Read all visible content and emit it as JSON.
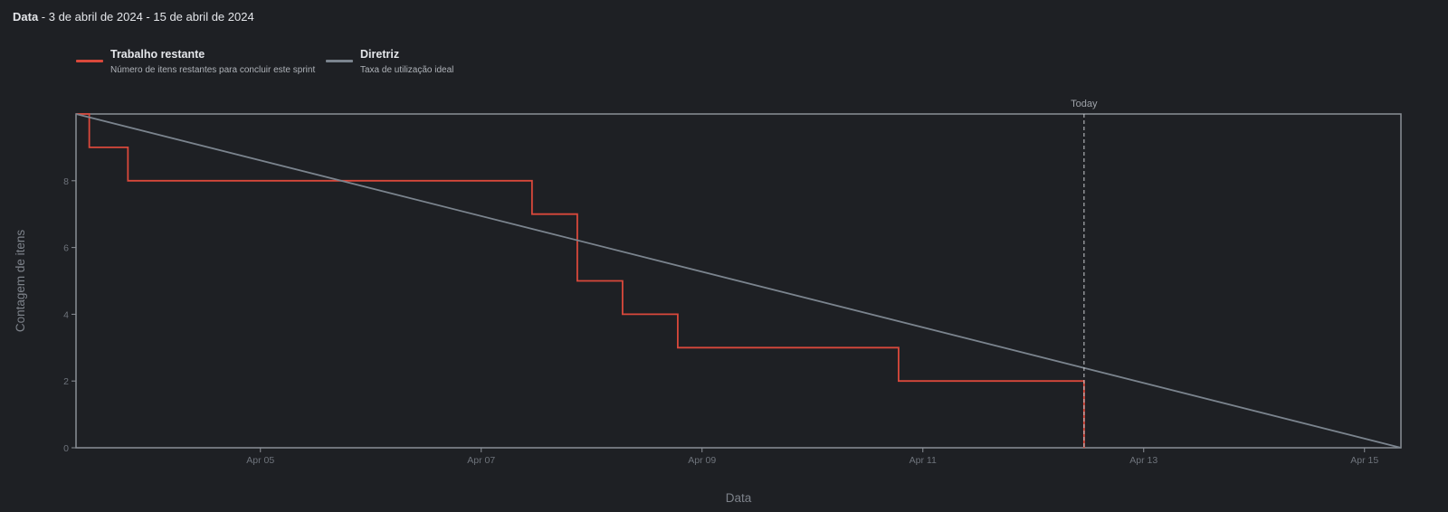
{
  "header": {
    "title": "Data",
    "range": " - 3 de abril de 2024 - 15 de abril de 2024"
  },
  "legend": [
    {
      "name": "Trabalho restante",
      "desc": "Número de itens restantes para concluir este sprint",
      "color": "#d9483b"
    },
    {
      "name": "Diretriz",
      "desc": "Taxa de utilização ideal",
      "color": "#7b848e"
    }
  ],
  "chart_data": {
    "type": "line",
    "xlabel": "Data",
    "ylabel": "Contagem de itens",
    "x_ticks": [
      "Apr 05",
      "Apr 07",
      "Apr 09",
      "Apr 11",
      "Apr 13",
      "Apr 15"
    ],
    "x_tick_values": [
      5,
      7,
      9,
      11,
      13,
      15
    ],
    "xlim": [
      3.33,
      15.33
    ],
    "y_ticks": [
      "0",
      "2",
      "4",
      "6",
      "8"
    ],
    "y_tick_values": [
      0,
      2,
      4,
      6,
      8
    ],
    "ylim": [
      0,
      10
    ],
    "today": {
      "label": "Today",
      "x": 12.46
    },
    "series": [
      {
        "name": "Trabalho restante",
        "color": "#d9483b",
        "step": true,
        "points": [
          [
            3.33,
            10
          ],
          [
            3.45,
            9
          ],
          [
            3.8,
            8
          ],
          [
            7.46,
            7
          ],
          [
            7.87,
            5
          ],
          [
            8.28,
            4
          ],
          [
            8.78,
            3
          ],
          [
            10.78,
            2
          ],
          [
            12.46,
            0
          ]
        ]
      },
      {
        "name": "Diretriz",
        "color": "#7b848e",
        "points": [
          [
            3.33,
            10
          ],
          [
            15.33,
            0
          ]
        ]
      }
    ]
  }
}
